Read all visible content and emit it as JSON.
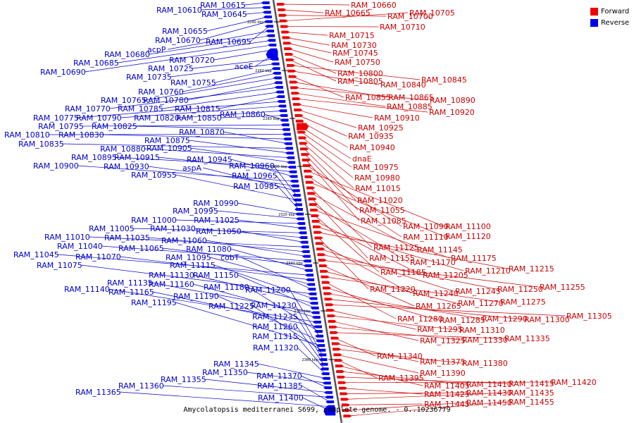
{
  "caption": "Amycolatopsis mediterranei S699, complete genome. - 0..10236779",
  "legend": [
    {
      "label": "Forward",
      "color": "#ee0000"
    },
    {
      "label": "Reverse",
      "color": "#0000ee"
    }
  ],
  "scale_ticks": [
    "2240 kbp",
    "2260 kbp",
    "2280 kbp",
    "2300 kbp",
    "2320 kbp",
    "2340 kbp",
    "2360 kbp",
    "2380 kbp"
  ],
  "forward_genes": [
    "RAM_10660",
    "RAM_10665",
    "RAM_10700",
    "RAM_10705",
    "RAM_10710",
    "RAM_10715",
    "RAM_10730",
    "RAM_10745",
    "RAM_10750",
    "RAM_10800",
    "RAM_10805",
    "RAM_10845",
    "RAM_10840",
    "RAM_10855",
    "RAM_10865",
    "RAM_10890",
    "RAM_10885",
    "RAM_10920",
    "RAM_10910",
    "RAM_10925",
    "RAM_10935",
    "RAM_10940",
    "dnaE",
    "RAM_10975",
    "RAM_10980",
    "RAM_11015",
    "RAM_11020",
    "RAM_11055",
    "RAM_11085",
    "RAM_11090",
    "RAM_11100",
    "RAM_11110",
    "RAM_11120",
    "RAM_11125",
    "RAM_11145",
    "RAM_11155",
    "RAM_11170",
    "RAM_11175",
    "RAM_11185",
    "RAM_11205",
    "RAM_11210",
    "RAM_11215",
    "RAM_11220",
    "RAM_11240",
    "RAM_11245",
    "RAM_11250",
    "RAM_11255",
    "RAM_11265",
    "RAM_11270",
    "RAM_11275",
    "RAM_11280",
    "RAM_11285",
    "RAM_11290",
    "RAM_11300",
    "RAM_11305",
    "RAM_11295",
    "RAM_11310",
    "RAM_11325",
    "RAM_11330",
    "RAM_11335",
    "RAM_11340",
    "RAM_11375",
    "RAM_11380",
    "RAM_11390",
    "RAM_11395",
    "RAM_11405",
    "RAM_11410",
    "RAM_11415",
    "RAM_11420",
    "RAM_11425",
    "RAM_11430",
    "RAM_11435",
    "RAM_11445",
    "RAM_11450",
    "RAM_11455"
  ],
  "reverse_genes": [
    "RAM_10615",
    "RAM_10610",
    "RAM_10645",
    "RAM_10655",
    "RAM_10670",
    "RAM_10695",
    "acpP",
    "RAM_10680",
    "RAM_10685",
    "RAM_10690",
    "RAM_10720",
    "aceE",
    "RAM_10725",
    "RAM_10735",
    "RAM_10755",
    "RAM_10760",
    "RAM_10765",
    "RAM_10780",
    "RAM_10770",
    "RAM_10785",
    "RAM_10815",
    "RAM_10775",
    "RAM_10790",
    "RAM_10820",
    "RAM_10850",
    "RAM_10860",
    "RAM_10795",
    "RAM_10825",
    "RAM_10810",
    "RAM_10830",
    "RAM_10870",
    "RAM_10835",
    "RAM_10875",
    "RAM_10880",
    "RAM_10905",
    "RAM_10895",
    "RAM_10915",
    "RAM_10945",
    "RAM_10900",
    "RAM_10930",
    "aspA",
    "RAM_10960",
    "RAM_10955",
    "RAM_10965",
    "RAM_10985",
    "RAM_10990",
    "RAM_10995",
    "RAM_11000",
    "RAM_11025",
    "RAM_11005",
    "RAM_11030",
    "RAM_11050",
    "RAM_11010",
    "RAM_11035",
    "RAM_11060",
    "RAM_11040",
    "RAM_11065",
    "RAM_11080",
    "RAM_11045",
    "RAM_11070",
    "RAM_11095",
    "cobT",
    "RAM_11075",
    "RAM_11115",
    "RAM_11130",
    "RAM_11150",
    "RAM_11135",
    "RAM_11160",
    "RAM_11140",
    "RAM_11165",
    "RAM_11180",
    "RAM_11200",
    "RAM_11190",
    "RAM_11195",
    "RAM_11225",
    "RAM_11230",
    "RAM_11235",
    "RAM_11260",
    "RAM_11315",
    "RAM_11320",
    "RAM_11345",
    "RAM_11350",
    "RAM_11370",
    "RAM_11355",
    "RAM_11360",
    "RAM_11385",
    "RAM_11365",
    "RAM_11400"
  ]
}
